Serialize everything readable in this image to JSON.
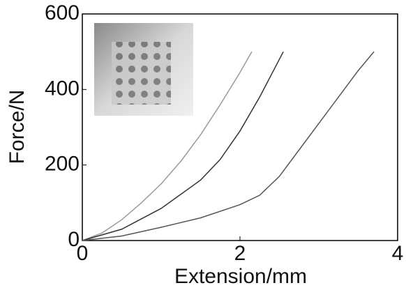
{
  "chart_data": {
    "type": "line",
    "xlabel": "Extension/mm",
    "ylabel": "Force/N",
    "xlim": [
      0,
      4
    ],
    "xticks": [
      0,
      2,
      4
    ],
    "ylim": [
      0,
      600
    ],
    "yticks": [
      0,
      200,
      400,
      600
    ],
    "series": [
      {
        "color": "#9a9a9a",
        "x": [
          0,
          0.25,
          0.5,
          0.75,
          1,
          1.25,
          1.5,
          1.75,
          2,
          2.15
        ],
        "values": [
          0,
          20,
          55,
          100,
          150,
          210,
          280,
          360,
          445,
          500
        ]
      },
      {
        "color": "#333333",
        "x": [
          0,
          0.5,
          1,
          1.5,
          1.75,
          2,
          2.25,
          2.55
        ],
        "values": [
          0,
          30,
          85,
          160,
          215,
          290,
          380,
          500
        ]
      },
      {
        "color": "#555555",
        "x": [
          0,
          0.5,
          1,
          1.5,
          2,
          2.25,
          2.5,
          2.75,
          3,
          3.25,
          3.5,
          3.7
        ],
        "values": [
          0,
          12,
          35,
          60,
          95,
          120,
          170,
          240,
          310,
          380,
          450,
          500
        ]
      }
    ]
  }
}
